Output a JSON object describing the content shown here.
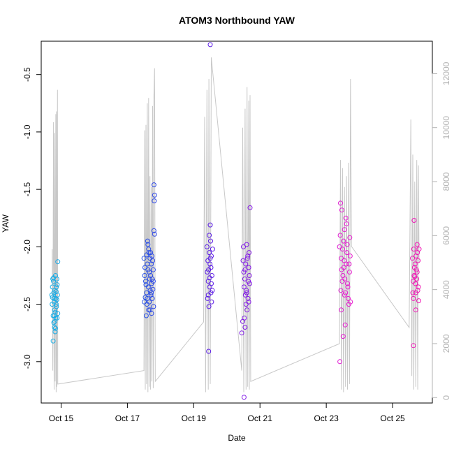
{
  "chart_data": {
    "type": "scatter",
    "title": "ATOM3 Northbound YAW",
    "xlabel": "Date",
    "ylabel": "YAW",
    "y_right_label": "",
    "x_ticks": [
      "Oct 15",
      "Oct 17",
      "Oct 19",
      "Oct 21",
      "Oct 23",
      "Oct 25"
    ],
    "x_tick_values": [
      15,
      17,
      19,
      21,
      23,
      25
    ],
    "xlim": [
      14.4,
      26.2
    ],
    "ylim": [
      -3.36,
      -0.21
    ],
    "y_ticks": [
      "-0.5",
      "-1.0",
      "-1.5",
      "-2.0",
      "-2.5",
      "-3.0"
    ],
    "y_tick_values": [
      -0.5,
      -1.0,
      -1.5,
      -2.0,
      -2.5,
      -3.0
    ],
    "y2lim": [
      -200,
      13200
    ],
    "y2_ticks": [
      "12000",
      "10000",
      "8000",
      "6000",
      "4000",
      "2000",
      "0"
    ],
    "y2_tick_values": [
      12000,
      10000,
      8000,
      6000,
      4000,
      2000,
      0
    ],
    "grid": false,
    "colors": {
      "scatter_gradient": [
        "#1ab0e6",
        "#1a66e6",
        "#4d1ae6",
        "#a01ae6",
        "#e61ad0",
        "#f01ab4"
      ],
      "secondary_line": "#c8c8c8",
      "axis": "#000000",
      "right_axis": "#b3b3b3"
    },
    "series": [
      {
        "kind": "scatter",
        "points": [
          [
            14.75,
            -2.28
          ],
          [
            14.78,
            -2.4
          ],
          [
            14.8,
            -2.55
          ],
          [
            14.82,
            -2.74
          ],
          [
            14.74,
            -2.35
          ],
          [
            14.76,
            -2.6
          ],
          [
            14.79,
            -2.45
          ],
          [
            14.81,
            -2.65
          ],
          [
            14.83,
            -2.25
          ],
          [
            14.85,
            -2.5
          ],
          [
            14.77,
            -2.3
          ],
          [
            14.8,
            -2.7
          ],
          [
            14.84,
            -2.45
          ],
          [
            14.86,
            -2.35
          ],
          [
            14.73,
            -2.5
          ],
          [
            14.78,
            -2.66
          ],
          [
            14.82,
            -2.57
          ],
          [
            14.87,
            -2.28
          ],
          [
            14.88,
            -2.62
          ],
          [
            14.89,
            -2.42
          ],
          [
            14.9,
            -2.13
          ],
          [
            14.76,
            -2.82
          ],
          [
            14.81,
            -2.38
          ],
          [
            14.79,
            -2.48
          ],
          [
            14.84,
            -2.62
          ],
          [
            14.86,
            -2.52
          ],
          [
            14.88,
            -2.33
          ],
          [
            14.74,
            -2.44
          ],
          [
            14.83,
            -2.71
          ],
          [
            14.87,
            -2.46
          ],
          [
            14.9,
            -2.58
          ],
          [
            14.77,
            -2.27
          ],
          [
            14.85,
            -2.39
          ],
          [
            14.8,
            -2.6
          ],
          [
            14.72,
            -2.42
          ],
          [
            17.5,
            -2.1
          ],
          [
            17.55,
            -2.3
          ],
          [
            17.6,
            -2.45
          ],
          [
            17.62,
            -2.2
          ],
          [
            17.65,
            -2.05
          ],
          [
            17.58,
            -2.4
          ],
          [
            17.68,
            -2.55
          ],
          [
            17.7,
            -2.25
          ],
          [
            17.72,
            -2.15
          ],
          [
            17.63,
            -2.35
          ],
          [
            17.75,
            -2.45
          ],
          [
            17.78,
            -2.3
          ],
          [
            17.52,
            -2.25
          ],
          [
            17.57,
            -2.6
          ],
          [
            17.66,
            -2.48
          ],
          [
            17.69,
            -2.38
          ],
          [
            17.73,
            -2.58
          ],
          [
            17.76,
            -2.12
          ],
          [
            17.61,
            -1.95
          ],
          [
            17.64,
            -2.02
          ],
          [
            17.53,
            -2.18
          ],
          [
            17.59,
            -2.5
          ],
          [
            17.67,
            -2.28
          ],
          [
            17.71,
            -2.42
          ],
          [
            17.74,
            -2.08
          ],
          [
            17.56,
            -2.33
          ],
          [
            17.79,
            -2.52
          ],
          [
            17.54,
            -2.44
          ],
          [
            17.6,
            -2.15
          ],
          [
            17.66,
            -2.22
          ],
          [
            17.7,
            -2.05
          ],
          [
            17.77,
            -2.37
          ],
          [
            17.8,
            -1.46
          ],
          [
            17.82,
            -1.55
          ],
          [
            17.81,
            -1.6
          ],
          [
            17.8,
            -1.86
          ],
          [
            17.82,
            -1.89
          ],
          [
            17.62,
            -1.98
          ],
          [
            17.68,
            -2.1
          ],
          [
            17.73,
            -2.32
          ],
          [
            17.51,
            -2.48
          ],
          [
            17.64,
            -2.55
          ],
          [
            17.72,
            -2.4
          ],
          [
            17.78,
            -2.2
          ],
          [
            17.58,
            -2.07
          ],
          [
            17.75,
            -2.28
          ],
          [
            19.4,
            -2.0
          ],
          [
            19.45,
            -2.2
          ],
          [
            19.48,
            -2.35
          ],
          [
            19.5,
            -2.1
          ],
          [
            19.52,
            -2.4
          ],
          [
            19.44,
            -2.3
          ],
          [
            19.47,
            -2.05
          ],
          [
            19.55,
            -2.25
          ],
          [
            19.42,
            -2.45
          ],
          [
            19.49,
            -2.15
          ],
          [
            19.53,
            -2.32
          ],
          [
            19.46,
            -2.52
          ],
          [
            19.51,
            -1.95
          ],
          [
            19.43,
            -2.12
          ],
          [
            19.56,
            -2.38
          ],
          [
            19.54,
            -2.48
          ],
          [
            19.41,
            -2.22
          ],
          [
            19.57,
            -2.02
          ],
          [
            19.48,
            -2.27
          ],
          [
            19.52,
            -2.18
          ],
          [
            19.5,
            -1.81
          ],
          [
            19.47,
            -1.9
          ],
          [
            19.45,
            -2.91
          ],
          [
            19.5,
            -0.24
          ],
          [
            19.44,
            -2.42
          ],
          [
            19.53,
            -2.08
          ],
          [
            20.5,
            -2.0
          ],
          [
            20.55,
            -2.2
          ],
          [
            20.6,
            -2.4
          ],
          [
            20.62,
            -2.1
          ],
          [
            20.65,
            -2.3
          ],
          [
            20.58,
            -2.5
          ],
          [
            20.68,
            -2.25
          ],
          [
            20.52,
            -2.35
          ],
          [
            20.57,
            -2.15
          ],
          [
            20.64,
            -2.45
          ],
          [
            20.67,
            -2.05
          ],
          [
            20.54,
            -2.28
          ],
          [
            20.61,
            -2.55
          ],
          [
            20.66,
            -2.18
          ],
          [
            20.53,
            -2.62
          ],
          [
            20.59,
            -2.38
          ],
          [
            20.63,
            -2.08
          ],
          [
            20.56,
            -2.42
          ],
          [
            20.69,
            -2.32
          ],
          [
            20.51,
            -2.22
          ],
          [
            20.45,
            -2.75
          ],
          [
            20.48,
            -2.65
          ],
          [
            20.55,
            -2.7
          ],
          [
            20.52,
            -3.31
          ],
          [
            20.7,
            -1.66
          ],
          [
            20.49,
            -2.12
          ],
          [
            20.6,
            -1.98
          ],
          [
            20.66,
            -2.48
          ],
          [
            23.4,
            -2.0
          ],
          [
            23.45,
            -2.1
          ],
          [
            23.5,
            -2.25
          ],
          [
            23.55,
            -1.85
          ],
          [
            23.6,
            -2.15
          ],
          [
            23.48,
            -2.3
          ],
          [
            23.52,
            -1.95
          ],
          [
            23.58,
            -2.4
          ],
          [
            23.62,
            -2.05
          ],
          [
            23.46,
            -2.2
          ],
          [
            23.65,
            -2.35
          ],
          [
            23.42,
            -1.9
          ],
          [
            23.54,
            -2.12
          ],
          [
            23.66,
            -2.45
          ],
          [
            23.7,
            -2.22
          ],
          [
            23.72,
            -2.08
          ],
          [
            23.56,
            -2.28
          ],
          [
            23.44,
            -2.38
          ],
          [
            23.61,
            -1.8
          ],
          [
            23.68,
            -2.5
          ],
          [
            23.49,
            -2.02
          ],
          [
            23.53,
            -2.18
          ],
          [
            23.59,
            -1.75
          ],
          [
            23.64,
            -2.32
          ],
          [
            23.43,
            -1.62
          ],
          [
            23.47,
            -1.68
          ],
          [
            23.51,
            -2.78
          ],
          [
            23.41,
            -3.0
          ],
          [
            23.57,
            -2.68
          ],
          [
            23.73,
            -2.48
          ],
          [
            23.63,
            -1.98
          ],
          [
            23.69,
            -2.15
          ],
          [
            23.71,
            -1.92
          ],
          [
            23.45,
            -2.55
          ],
          [
            23.55,
            -2.42
          ],
          [
            25.6,
            -2.1
          ],
          [
            25.65,
            -2.25
          ],
          [
            25.7,
            -2.4
          ],
          [
            25.72,
            -2.2
          ],
          [
            25.75,
            -2.05
          ],
          [
            25.62,
            -2.3
          ],
          [
            25.68,
            -2.15
          ],
          [
            25.78,
            -2.35
          ],
          [
            25.63,
            -2.45
          ],
          [
            25.73,
            -2.28
          ],
          [
            25.66,
            -2.18
          ],
          [
            25.71,
            -2.08
          ],
          [
            25.76,
            -2.38
          ],
          [
            25.64,
            -2.02
          ],
          [
            25.69,
            -2.32
          ],
          [
            25.74,
            -2.22
          ],
          [
            25.61,
            -2.4
          ],
          [
            25.77,
            -2.12
          ],
          [
            25.67,
            -2.26
          ],
          [
            25.79,
            -2.47
          ],
          [
            25.65,
            -1.77
          ],
          [
            25.74,
            -1.98
          ],
          [
            25.63,
            -2.86
          ],
          [
            25.7,
            -2.55
          ],
          [
            25.8,
            -2.02
          ]
        ]
      },
      {
        "kind": "line-secondary-axis",
        "points": [
          [
            14.73,
            5500
          ],
          [
            14.75,
            1000
          ],
          [
            14.77,
            10200
          ],
          [
            14.79,
            300
          ],
          [
            14.8,
            9800
          ],
          [
            14.82,
            600
          ],
          [
            14.84,
            10500
          ],
          [
            14.85,
            200
          ],
          [
            14.86,
            10600
          ],
          [
            14.87,
            400
          ],
          [
            14.89,
            11400
          ],
          [
            14.9,
            500
          ],
          [
            17.5,
            1000
          ],
          [
            17.52,
            9900
          ],
          [
            17.54,
            300
          ],
          [
            17.56,
            10100
          ],
          [
            17.58,
            500
          ],
          [
            17.6,
            10900
          ],
          [
            17.62,
            200
          ],
          [
            17.64,
            11100
          ],
          [
            17.66,
            400
          ],
          [
            17.68,
            8200
          ],
          [
            17.7,
            300
          ],
          [
            17.72,
            7800
          ],
          [
            17.74,
            600
          ],
          [
            17.76,
            10800
          ],
          [
            17.78,
            350
          ],
          [
            17.8,
            11200
          ],
          [
            17.82,
            12200
          ],
          [
            17.84,
            600
          ],
          [
            19.3,
            2800
          ],
          [
            19.33,
            10400
          ],
          [
            19.36,
            200
          ],
          [
            19.4,
            11400
          ],
          [
            19.44,
            300
          ],
          [
            19.46,
            11800
          ],
          [
            19.5,
            500
          ],
          [
            19.53,
            12600
          ],
          [
            20.45,
            1000
          ],
          [
            20.48,
            10000
          ],
          [
            20.51,
            200
          ],
          [
            20.55,
            10700
          ],
          [
            20.58,
            300
          ],
          [
            20.61,
            11500
          ],
          [
            20.63,
            400
          ],
          [
            20.66,
            11000
          ],
          [
            20.68,
            300
          ],
          [
            20.7,
            11200
          ],
          [
            20.72,
            600
          ],
          [
            23.4,
            2000
          ],
          [
            23.43,
            8800
          ],
          [
            23.46,
            300
          ],
          [
            23.49,
            8500
          ],
          [
            23.52,
            200
          ],
          [
            23.55,
            7800
          ],
          [
            23.58,
            400
          ],
          [
            23.61,
            8200
          ],
          [
            23.64,
            300
          ],
          [
            23.67,
            8700
          ],
          [
            23.7,
            500
          ],
          [
            23.73,
            11800
          ],
          [
            23.76,
            5600
          ],
          [
            25.5,
            2600
          ],
          [
            25.55,
            10300
          ],
          [
            25.58,
            800
          ],
          [
            25.61,
            9000
          ],
          [
            25.64,
            300
          ],
          [
            25.67,
            8000
          ],
          [
            25.7,
            400
          ],
          [
            25.73,
            8800
          ],
          [
            25.76,
            300
          ],
          [
            25.78,
            8600
          ],
          [
            25.8,
            5000
          ]
        ]
      }
    ]
  }
}
